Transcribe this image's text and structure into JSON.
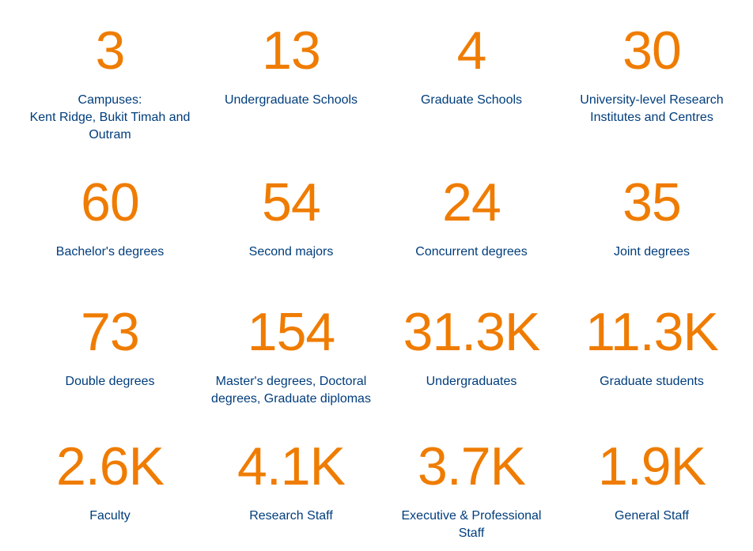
{
  "colors": {
    "number": "#ef7c00",
    "label": "#003d7c",
    "background": "#ffffff"
  },
  "stats": [
    {
      "value": "3",
      "label": "Campuses:\nKent Ridge, Bukit Timah and\nOutram"
    },
    {
      "value": "13",
      "label": "Undergraduate Schools"
    },
    {
      "value": "4",
      "label": "Graduate Schools"
    },
    {
      "value": "30",
      "label": "University-level Research\nInstitutes and Centres"
    },
    {
      "value": "60",
      "label": "Bachelor's degrees"
    },
    {
      "value": "54",
      "label": "Second majors"
    },
    {
      "value": "24",
      "label": "Concurrent degrees"
    },
    {
      "value": "35",
      "label": "Joint degrees"
    },
    {
      "value": "73",
      "label": "Double degrees"
    },
    {
      "value": "154",
      "label": "Master's degrees, Doctoral\ndegrees, Graduate diplomas"
    },
    {
      "value": "31.3K",
      "label": "Undergraduates"
    },
    {
      "value": "11.3K",
      "label": "Graduate students"
    },
    {
      "value": "2.6K",
      "label": "Faculty"
    },
    {
      "value": "4.1K",
      "label": "Research Staff"
    },
    {
      "value": "3.7K",
      "label": "Executive & Professional\nStaff"
    },
    {
      "value": "1.9K",
      "label": "General Staff"
    }
  ]
}
